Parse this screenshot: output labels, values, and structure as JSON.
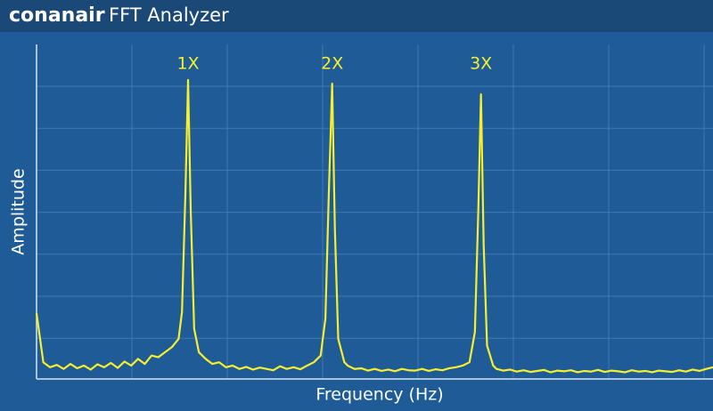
{
  "header": {
    "brand": "conanair",
    "title": "FFT Analyzer"
  },
  "chart_data": {
    "type": "line",
    "x_label": "Frequency (Hz)",
    "y_label": "Amplitude",
    "color": "#f5ef2e",
    "grid": true,
    "xlim": [
      0,
      100
    ],
    "ylim": [
      0,
      100
    ],
    "x": [
      0,
      1,
      2,
      3,
      4,
      5,
      6,
      7,
      8,
      9,
      10,
      11,
      12,
      13,
      14,
      15,
      16,
      17,
      18,
      19,
      20,
      21,
      21.5,
      22,
      22.4,
      22.8,
      23.3,
      24,
      25,
      26,
      27,
      28,
      29,
      30,
      31,
      32,
      33,
      34,
      35,
      36,
      37,
      38,
      39,
      40,
      41,
      42,
      42.7,
      43.2,
      43.7,
      44.1,
      44.6,
      45.5,
      46,
      47,
      48,
      49,
      50,
      51,
      52,
      53,
      54,
      55,
      56,
      57,
      58,
      59,
      60,
      61,
      62,
      63,
      64,
      64.8,
      65.3,
      65.7,
      66.1,
      66.6,
      67.5,
      68,
      69,
      70,
      71,
      72,
      73,
      74,
      75,
      76,
      77,
      78,
      79,
      80,
      81,
      82,
      83,
      84,
      85,
      86,
      87,
      88,
      89,
      90,
      91,
      92,
      93,
      94,
      95,
      96,
      97,
      98,
      99,
      100
    ],
    "values": [
      19.7,
      5,
      3.5,
      4.2,
      3,
      4.5,
      3.2,
      4,
      2.8,
      4.4,
      3.5,
      4.8,
      3.3,
      5.2,
      4,
      6,
      4.5,
      7,
      6.5,
      8,
      9.5,
      12,
      20,
      55,
      89.4,
      50,
      15,
      8,
      6,
      4.5,
      5,
      3.5,
      4,
      3,
      3.6,
      2.8,
      3.4,
      3,
      2.6,
      3.8,
      3,
      3.5,
      2.9,
      4,
      5,
      7,
      18,
      55,
      88.3,
      45,
      12,
      5,
      4,
      3,
      3.2,
      2.5,
      3,
      2.4,
      2.8,
      2.3,
      3,
      2.6,
      2.5,
      3,
      2.4,
      2.9,
      2.6,
      3.2,
      3.5,
      4,
      5,
      14,
      50,
      85.1,
      40,
      10,
      4,
      3,
      2.5,
      2.8,
      2.2,
      2.6,
      2.1,
      2.4,
      2.7,
      2,
      2.5,
      2.3,
      2.6,
      2,
      2.4,
      2.2,
      2.7,
      2.1,
      2.5,
      2.3,
      2,
      2.6,
      2.2,
      2.4,
      2,
      2.5,
      2.3,
      2.1,
      2.6,
      2.2,
      2.8,
      2.4,
      3,
      3.5
    ],
    "annotations": [
      {
        "text": "1X",
        "x": 22.4
      },
      {
        "text": "2X",
        "x": 43.7
      },
      {
        "text": "3X",
        "x": 65.7
      }
    ]
  }
}
